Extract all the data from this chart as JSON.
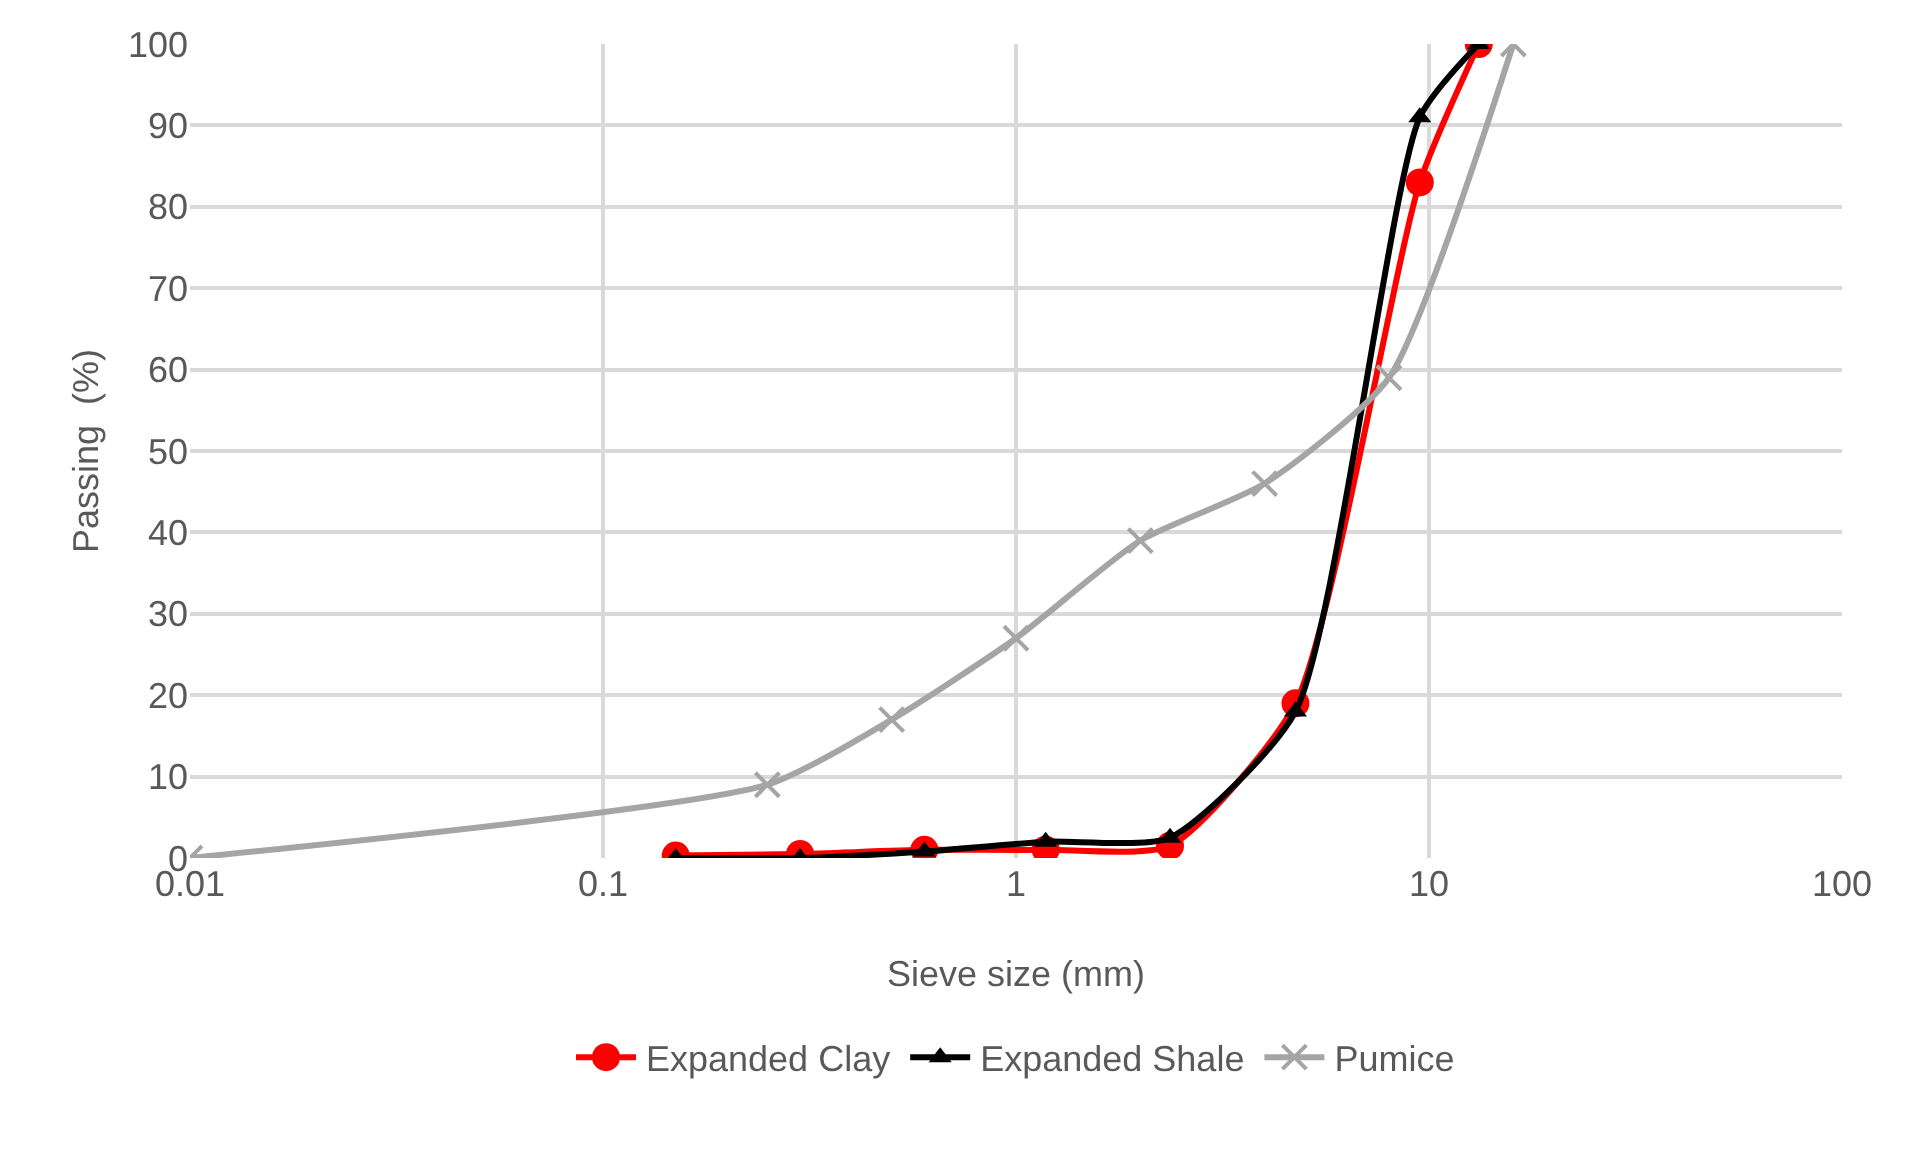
{
  "chart_data": {
    "type": "line",
    "xlabel": "Sieve size (mm)",
    "ylabel": "Passing  (%)",
    "log": "x",
    "grid": true,
    "legend": "bottom",
    "line_style": "solid",
    "xlim": [
      0.01,
      100
    ],
    "xticks": [
      0.01,
      0.1,
      1,
      10,
      100
    ],
    "ylim": [
      0,
      100
    ],
    "yticks": [
      0,
      10,
      20,
      30,
      40,
      50,
      60,
      70,
      80,
      90,
      100
    ],
    "series": [
      {
        "name": "Expanded Clay",
        "color": "#ff0000",
        "marker": "circle",
        "x": [
          0.15,
          0.3,
          0.6,
          1.18,
          2.36,
          4.75,
          9.5,
          13.2
        ],
        "values": [
          0.3,
          0.5,
          1,
          1,
          1.5,
          19,
          83,
          100
        ]
      },
      {
        "name": "Expanded Shale",
        "color": "#000000",
        "marker": "triangle",
        "x": [
          0.15,
          0.3,
          0.6,
          1.18,
          2.36,
          4.75,
          9.5,
          13.2
        ],
        "values": [
          0,
          0,
          0.8,
          2,
          2.5,
          18,
          91,
          100
        ]
      },
      {
        "name": "Pumice",
        "color": "#a5a5a5",
        "marker": "cross",
        "x": [
          0.01,
          0.25,
          0.5,
          1,
          2,
          4,
          8,
          16
        ],
        "values": [
          0,
          9,
          17,
          27,
          39,
          46,
          59,
          100
        ]
      }
    ]
  }
}
